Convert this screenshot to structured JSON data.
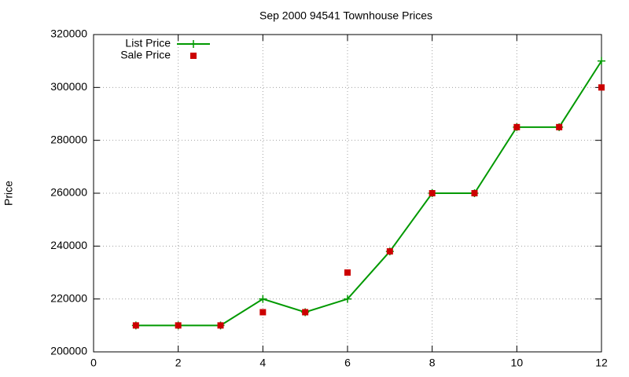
{
  "chart_data": {
    "type": "line",
    "title": "Sep 2000 94541 Townhouse Prices",
    "y_label": "Price",
    "x": [
      1,
      2,
      3,
      4,
      5,
      6,
      7,
      8,
      9,
      10,
      11,
      12
    ],
    "series": [
      {
        "name": "List Price",
        "color": "#009900",
        "style": "linespoints",
        "values": [
          210000,
          210000,
          210000,
          220000,
          215000,
          220000,
          238000,
          260000,
          260000,
          285000,
          285000,
          310000
        ]
      },
      {
        "name": "Sale Price",
        "color": "#cc0000",
        "style": "points",
        "values": [
          210000,
          210000,
          210000,
          215000,
          215000,
          230000,
          238000,
          260000,
          260000,
          285000,
          285000,
          300000
        ]
      }
    ],
    "xlim": [
      0,
      12
    ],
    "xticks": [
      0,
      2,
      4,
      6,
      8,
      10,
      12
    ],
    "ylim": [
      200000,
      320000
    ],
    "yticks": [
      200000,
      220000,
      240000,
      260000,
      280000,
      300000,
      320000
    ],
    "grid": true,
    "legend": "top-left"
  }
}
